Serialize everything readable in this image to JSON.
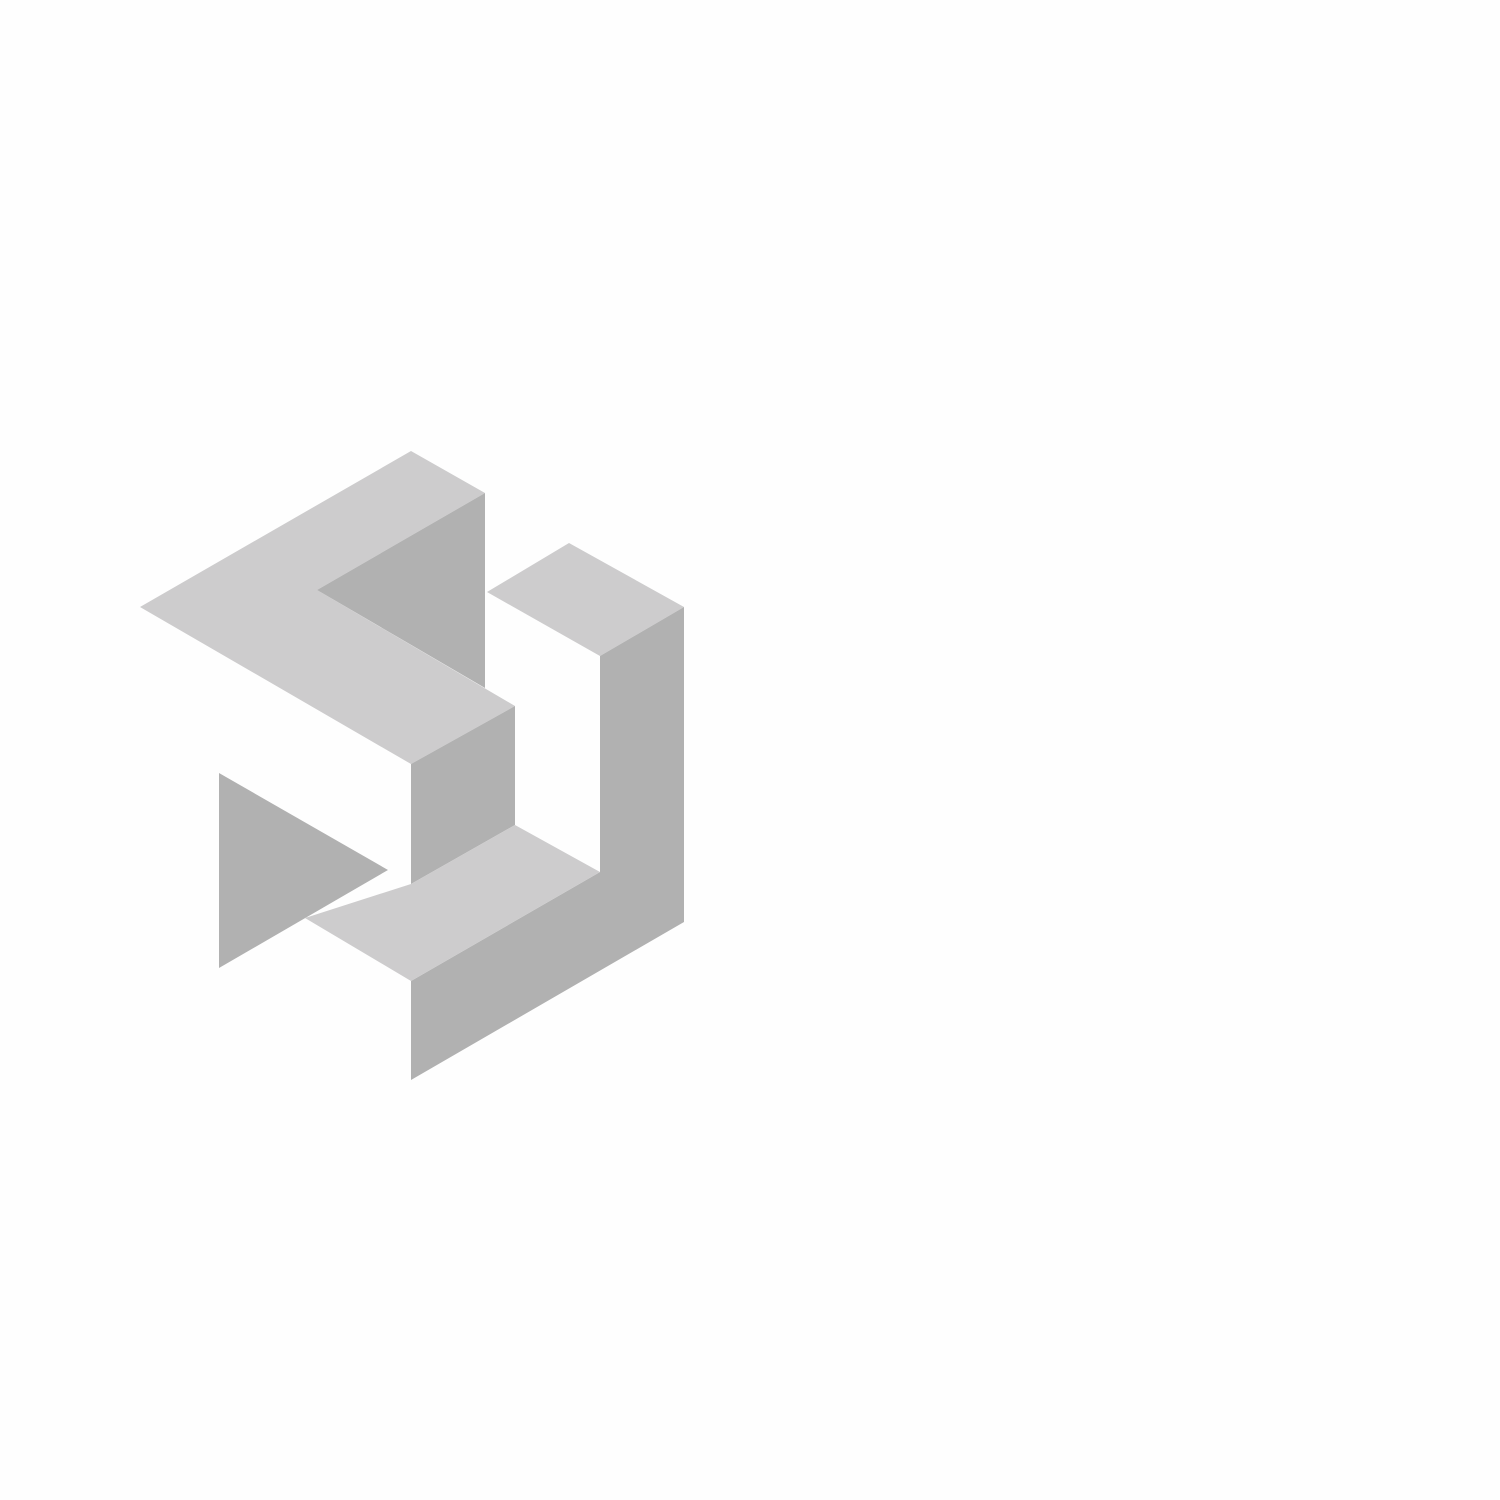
{
  "colors": {
    "background": "#fefefe",
    "light_face": "#cdcccd",
    "dark_face": "#b1b1b1"
  },
  "graphic": {
    "icon": "isometric-block-logo-icon"
  }
}
